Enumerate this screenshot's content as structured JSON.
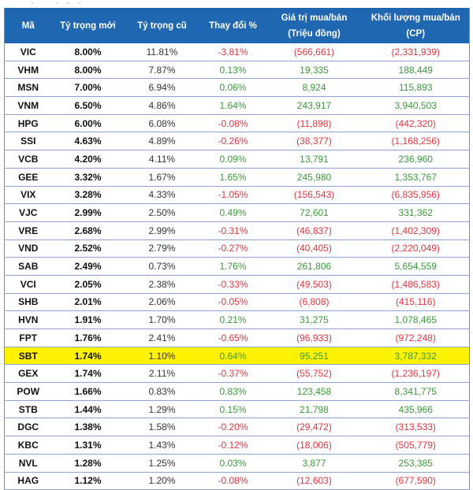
{
  "colors": {
    "header_bg": "#1f67b1",
    "positive": "#3a9a3a",
    "negative": "#e8333c",
    "highlight": "#fff200"
  },
  "table": {
    "headers": {
      "code": "Mã",
      "new_weight": "Tỷ trọng mới",
      "old_weight": "Tỷ trọng cũ",
      "change": "Thay đổi %",
      "value_line1": "Giá trị mua/bán",
      "value_line2": "(Triệu đồng)",
      "volume_line1": "Khối lượng mua/bán",
      "volume_line2": "(CP)"
    },
    "rows": [
      {
        "code": "VIC",
        "new": "8.00%",
        "old": "11.81%",
        "change": "-3.81%",
        "value": "(566,661)",
        "volume": "(2,331,939)",
        "sign": "neg"
      },
      {
        "code": "VHM",
        "new": "8.00%",
        "old": "7.87%",
        "change": "0.13%",
        "value": "19,335",
        "volume": "188,449",
        "sign": "pos"
      },
      {
        "code": "MSN",
        "new": "7.00%",
        "old": "6.94%",
        "change": "0.06%",
        "value": "8,924",
        "volume": "115,893",
        "sign": "pos"
      },
      {
        "code": "VNM",
        "new": "6.50%",
        "old": "4.86%",
        "change": "1.64%",
        "value": "243,917",
        "volume": "3,940,503",
        "sign": "pos"
      },
      {
        "code": "HPG",
        "new": "6.00%",
        "old": "6.08%",
        "change": "-0.08%",
        "value": "(11,898)",
        "volume": "(442,320)",
        "sign": "neg"
      },
      {
        "code": "SSI",
        "new": "4.63%",
        "old": "4.89%",
        "change": "-0.26%",
        "value": "(38,377)",
        "volume": "(1,168,256)",
        "sign": "neg"
      },
      {
        "code": "VCB",
        "new": "4.20%",
        "old": "4.11%",
        "change": "0.09%",
        "value": "13,791",
        "volume": "236,960",
        "sign": "pos"
      },
      {
        "code": "GEE",
        "new": "3.32%",
        "old": "1.67%",
        "change": "1.65%",
        "value": "245,980",
        "volume": "1,353,767",
        "sign": "pos"
      },
      {
        "code": "VIX",
        "new": "3.28%",
        "old": "4.33%",
        "change": "-1.05%",
        "value": "(156,543)",
        "volume": "(6,835,956)",
        "sign": "neg"
      },
      {
        "code": "VJC",
        "new": "2.99%",
        "old": "2.50%",
        "change": "0.49%",
        "value": "72,601",
        "volume": "331,362",
        "sign": "pos"
      },
      {
        "code": "VRE",
        "new": "2.68%",
        "old": "2.99%",
        "change": "-0.31%",
        "value": "(46,837)",
        "volume": "(1,402,309)",
        "sign": "neg"
      },
      {
        "code": "VND",
        "new": "2.52%",
        "old": "2.79%",
        "change": "-0.27%",
        "value": "(40,405)",
        "volume": "(2,220,049)",
        "sign": "neg"
      },
      {
        "code": "SAB",
        "new": "2.49%",
        "old": "0.73%",
        "change": "1.76%",
        "value": "261,806",
        "volume": "5,654,559",
        "sign": "pos"
      },
      {
        "code": "VCI",
        "new": "2.05%",
        "old": "2.38%",
        "change": "-0.33%",
        "value": "(49,503)",
        "volume": "(1,486,583)",
        "sign": "neg"
      },
      {
        "code": "SHB",
        "new": "2.01%",
        "old": "2.06%",
        "change": "-0.05%",
        "value": "(6,808)",
        "volume": "(415,116)",
        "sign": "neg"
      },
      {
        "code": "HVN",
        "new": "1.91%",
        "old": "1.70%",
        "change": "0.21%",
        "value": "31,275",
        "volume": "1,078,465",
        "sign": "pos"
      },
      {
        "code": "FPT",
        "new": "1.76%",
        "old": "2.41%",
        "change": "-0.65%",
        "value": "(96,933)",
        "volume": "(972,248)",
        "sign": "neg"
      },
      {
        "code": "SBT",
        "new": "1.74%",
        "old": "1.10%",
        "change": "0.64%",
        "value": "95,251",
        "volume": "3,787,332",
        "sign": "pos",
        "highlight": true
      },
      {
        "code": "GEX",
        "new": "1.74%",
        "old": "2.11%",
        "change": "-0.37%",
        "value": "(55,752)",
        "volume": "(1,236,197)",
        "sign": "neg"
      },
      {
        "code": "POW",
        "new": "1.66%",
        "old": "0.83%",
        "change": "0.83%",
        "value": "123,458",
        "volume": "8,341,775",
        "sign": "pos"
      },
      {
        "code": "STB",
        "new": "1.44%",
        "old": "1.29%",
        "change": "0.15%",
        "value": "21,798",
        "volume": "435,966",
        "sign": "pos"
      },
      {
        "code": "DGC",
        "new": "1.38%",
        "old": "1.58%",
        "change": "-0.20%",
        "value": "(29,472)",
        "volume": "(313,533)",
        "sign": "neg"
      },
      {
        "code": "KBC",
        "new": "1.31%",
        "old": "1.43%",
        "change": "-0.12%",
        "value": "(18,006)",
        "volume": "(505,779)",
        "sign": "neg"
      },
      {
        "code": "NVL",
        "new": "1.28%",
        "old": "1.25%",
        "change": "0.03%",
        "value": "3,877",
        "volume": "253,385",
        "sign": "pos"
      },
      {
        "code": "HAG",
        "new": "1.12%",
        "old": "1.20%",
        "change": "-0.08%",
        "value": "(12,603)",
        "volume": "(677,590)",
        "sign": "neg"
      }
    ]
  }
}
